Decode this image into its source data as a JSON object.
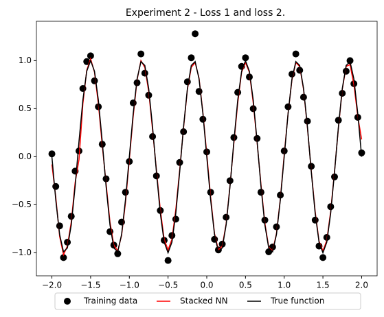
{
  "chart_data": {
    "type": "line",
    "title": "Experiment 2 - Loss 1 and loss 2.",
    "x": [
      -2.0,
      -1.95,
      -1.9,
      -1.85,
      -1.8,
      -1.75,
      -1.7,
      -1.65,
      -1.6,
      -1.55,
      -1.5,
      -1.45,
      -1.4,
      -1.35,
      -1.3,
      -1.25,
      -1.2,
      -1.15,
      -1.1,
      -1.05,
      -1.0,
      -0.95,
      -0.9,
      -0.85,
      -0.8,
      -0.75,
      -0.7,
      -0.65,
      -0.6,
      -0.55,
      -0.5,
      -0.45,
      -0.4,
      -0.35,
      -0.3,
      -0.25,
      -0.2,
      -0.15,
      -0.1,
      -0.05,
      0.0,
      0.05,
      0.1,
      0.15,
      0.2,
      0.25,
      0.3,
      0.35,
      0.4,
      0.45,
      0.5,
      0.55,
      0.6,
      0.65,
      0.7,
      0.75,
      0.8,
      0.85,
      0.9,
      0.95,
      1.0,
      1.05,
      1.1,
      1.15,
      1.2,
      1.25,
      1.3,
      1.35,
      1.4,
      1.45,
      1.5,
      1.55,
      1.6,
      1.65,
      1.7,
      1.75,
      1.8,
      1.85,
      1.9,
      1.95,
      2.0
    ],
    "series": [
      {
        "name": "Training data",
        "type": "scatter",
        "color": "#000000",
        "values": [
          0.03,
          -0.31,
          -0.72,
          -1.05,
          -0.89,
          -0.62,
          -0.15,
          0.06,
          0.71,
          0.99,
          1.05,
          0.79,
          0.52,
          0.13,
          -0.23,
          -0.78,
          -0.92,
          -1.01,
          -0.68,
          -0.37,
          -0.05,
          0.56,
          0.77,
          1.07,
          0.87,
          0.64,
          0.21,
          -0.2,
          -0.56,
          -0.87,
          -1.08,
          -0.82,
          -0.65,
          -0.06,
          0.26,
          0.78,
          1.03,
          1.28,
          0.68,
          0.39,
          0.05,
          -0.37,
          -0.86,
          -0.97,
          -0.91,
          -0.63,
          -0.25,
          0.2,
          0.67,
          0.94,
          1.03,
          0.83,
          0.5,
          0.19,
          -0.37,
          -0.66,
          -0.99,
          -0.94,
          -0.73,
          -0.4,
          0.06,
          0.52,
          0.86,
          1.07,
          0.9,
          0.62,
          0.37,
          -0.1,
          -0.66,
          -0.93,
          -1.05,
          -0.84,
          -0.52,
          -0.21,
          0.38,
          0.66,
          0.89,
          1.0,
          0.76,
          0.41,
          0.04
        ]
      },
      {
        "name": "Stacked NN",
        "type": "line",
        "color": "#ff0000",
        "values": [
          -0.08,
          -0.42,
          -0.83,
          -1.02,
          -0.93,
          -0.68,
          -0.27,
          -0.03,
          0.55,
          0.9,
          1.02,
          0.88,
          0.55,
          0.12,
          -0.28,
          -0.68,
          -0.92,
          -0.98,
          -0.82,
          -0.48,
          -0.03,
          0.42,
          0.8,
          1.0,
          0.93,
          0.68,
          0.28,
          -0.14,
          -0.55,
          -0.86,
          -0.97,
          -0.86,
          -0.55,
          -0.14,
          0.3,
          0.7,
          0.93,
          0.98,
          0.82,
          0.46,
          0.03,
          -0.42,
          -0.8,
          -0.97,
          -0.93,
          -0.7,
          -0.3,
          0.14,
          0.56,
          0.88,
          0.98,
          0.88,
          0.56,
          0.15,
          -0.29,
          -0.69,
          -0.94,
          -0.98,
          -0.8,
          -0.44,
          0.02,
          0.45,
          0.8,
          0.98,
          0.94,
          0.7,
          0.3,
          -0.15,
          -0.57,
          -0.88,
          -0.98,
          -0.87,
          -0.57,
          -0.15,
          0.3,
          0.7,
          0.94,
          0.96,
          0.75,
          0.42,
          0.18
        ]
      },
      {
        "name": "True function",
        "type": "line",
        "color": "#000000",
        "values": [
          0,
          -0.45,
          -0.81,
          -0.99,
          -0.95,
          -0.71,
          -0.31,
          0.16,
          0.59,
          0.89,
          1.0,
          0.89,
          0.59,
          0.16,
          -0.31,
          -0.71,
          -0.95,
          -0.99,
          -0.81,
          -0.45,
          0,
          0.45,
          0.81,
          0.99,
          0.95,
          0.71,
          0.31,
          -0.16,
          -0.59,
          -0.89,
          -1.0,
          -0.89,
          -0.59,
          -0.16,
          0.31,
          0.71,
          0.95,
          0.99,
          0.81,
          0.45,
          0,
          -0.45,
          -0.81,
          -0.99,
          -0.95,
          -0.71,
          -0.31,
          0.16,
          0.59,
          0.89,
          1.0,
          0.89,
          0.59,
          0.16,
          -0.31,
          -0.71,
          -0.95,
          -0.99,
          -0.81,
          -0.45,
          0,
          0.45,
          0.81,
          0.99,
          0.95,
          0.71,
          0.31,
          -0.16,
          -0.59,
          -0.89,
          -1.0,
          -0.89,
          -0.59,
          -0.16,
          0.31,
          0.71,
          0.95,
          0.99,
          0.81,
          0.45,
          0
        ]
      }
    ],
    "xlim": [
      -2.2,
      2.2
    ],
    "ylim": [
      -1.24,
      1.41
    ],
    "xticks": [
      {
        "value": -2.0,
        "label": "−2.0"
      },
      {
        "value": -1.5,
        "label": "−1.5"
      },
      {
        "value": -1.0,
        "label": "−1.0"
      },
      {
        "value": -0.5,
        "label": "−0.5"
      },
      {
        "value": 0.0,
        "label": "0.0"
      },
      {
        "value": 0.5,
        "label": "0.5"
      },
      {
        "value": 1.0,
        "label": "1.0"
      },
      {
        "value": 1.5,
        "label": "1.5"
      },
      {
        "value": 2.0,
        "label": "2.0"
      }
    ],
    "yticks": [
      {
        "value": -1.0,
        "label": "−1.0"
      },
      {
        "value": -0.5,
        "label": "−0.5"
      },
      {
        "value": 0.0,
        "label": "0.0"
      },
      {
        "value": 0.5,
        "label": "0.5"
      },
      {
        "value": 1.0,
        "label": "1.0"
      }
    ],
    "grid": false,
    "legend": "below"
  }
}
